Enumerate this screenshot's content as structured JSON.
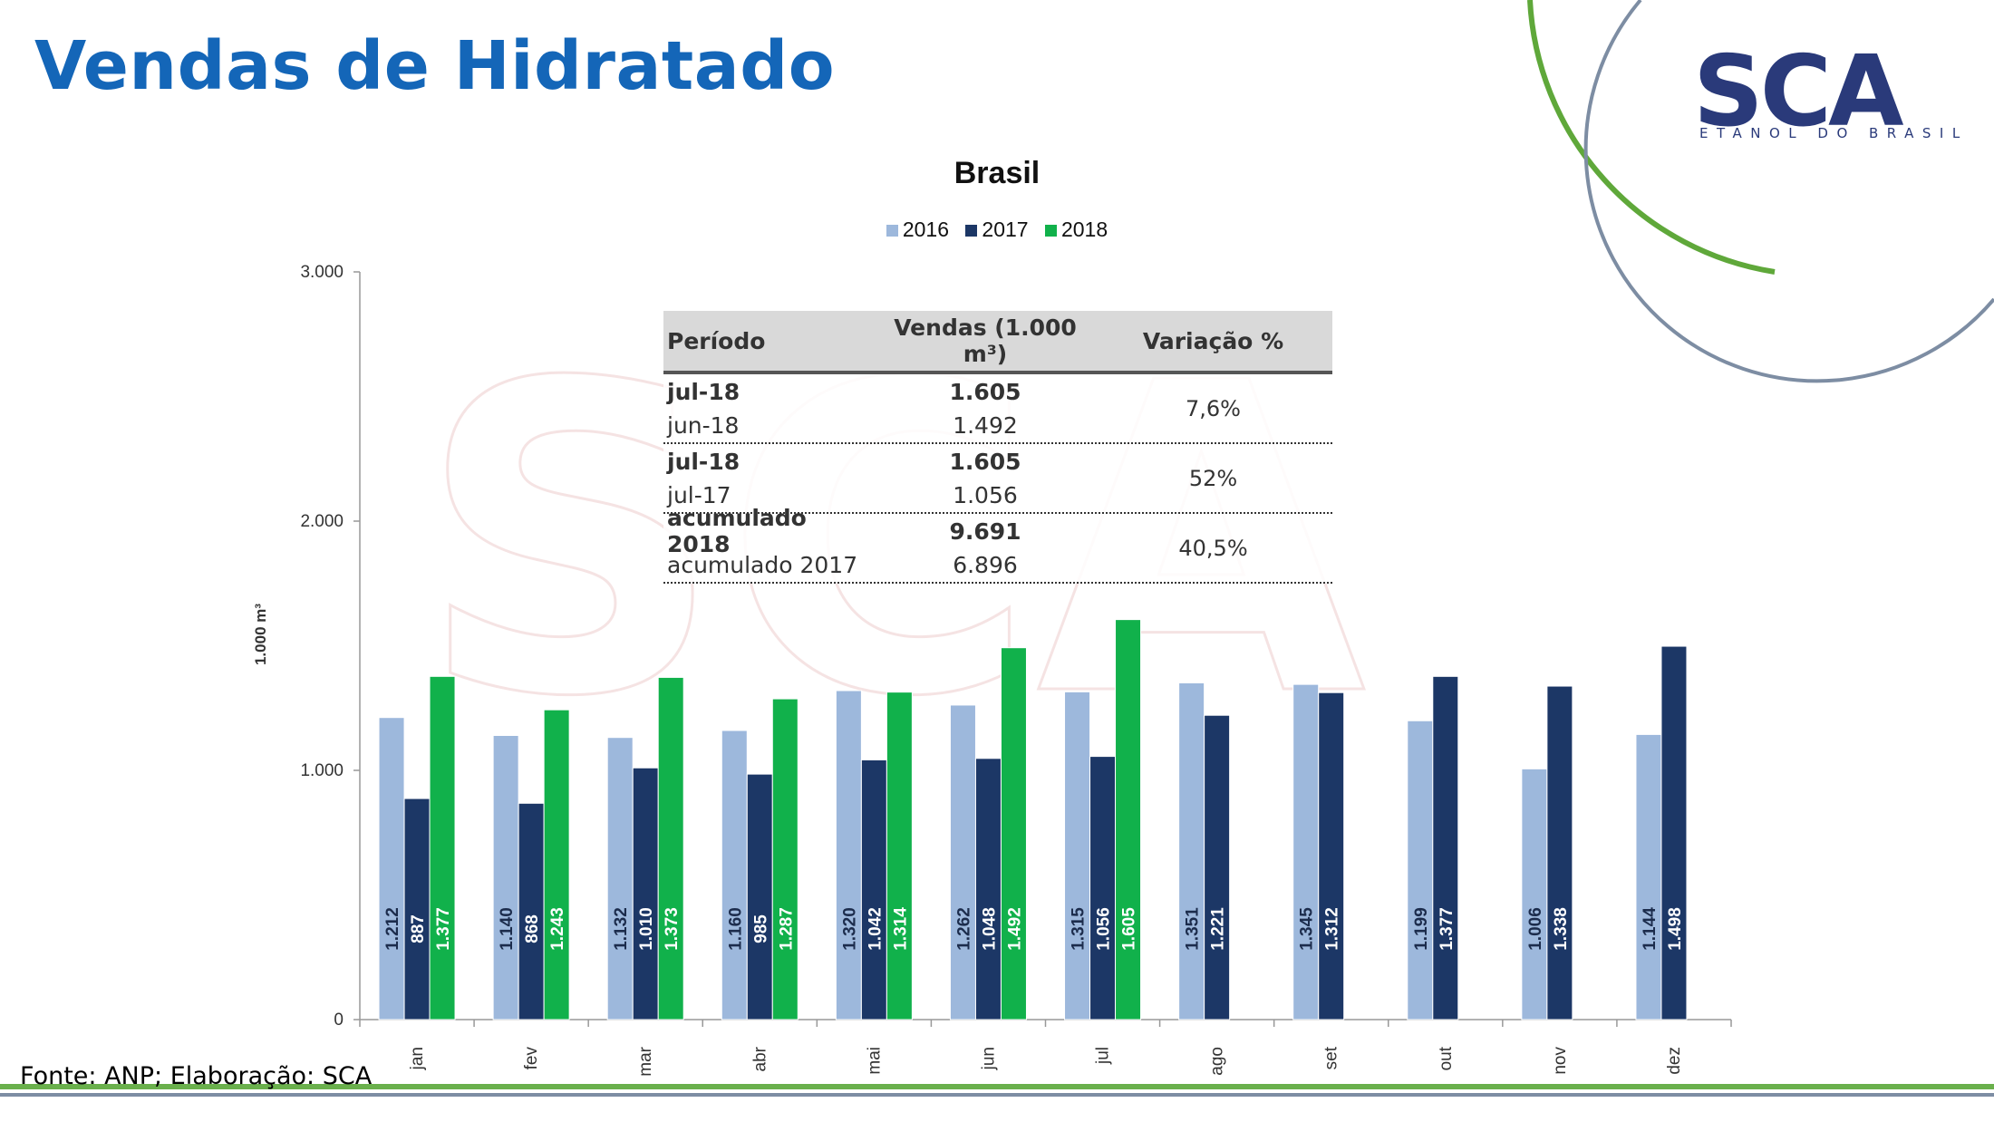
{
  "page": {
    "title": "Vendas de Hidratado",
    "source": "Fonte: ANP; Elaboração: SCA"
  },
  "logo": {
    "name": "SCA",
    "subtitle": "ETANOL DO BRASIL",
    "colors": {
      "navy": "#2a3a7a",
      "green": "#6ab04c"
    }
  },
  "chart_data": {
    "type": "bar",
    "title": "Brasil",
    "ylabel": "1.000 m³",
    "xlabel": "",
    "ylim": [
      0,
      3000
    ],
    "yticks": [
      "0",
      "1.000",
      "2.000",
      "3.000"
    ],
    "ytick_values": [
      0,
      1000,
      2000,
      3000
    ],
    "legend_position": "top-center",
    "grid": false,
    "categories": [
      "jan",
      "fev",
      "mar",
      "abr",
      "mai",
      "jun",
      "jul",
      "ago",
      "set",
      "out",
      "nov",
      "dez"
    ],
    "series": [
      {
        "name": "2016",
        "color": "#9db8dc",
        "values": [
          1212,
          1140,
          1132,
          1160,
          1320,
          1262,
          1315,
          1351,
          1345,
          1199,
          1006,
          1144
        ],
        "labels": [
          "1.212",
          "1.140",
          "1.132",
          "1.160",
          "1.320",
          "1.262",
          "1.315",
          "1.351",
          "1.345",
          "1.199",
          "1.006",
          "1.144"
        ]
      },
      {
        "name": "2017",
        "color": "#1c3766",
        "values": [
          887,
          868,
          1010,
          985,
          1042,
          1048,
          1056,
          1221,
          1312,
          1377,
          1338,
          1498
        ],
        "labels": [
          "887",
          "868",
          "1.010",
          "985",
          "1.042",
          "1.048",
          "1.056",
          "1.221",
          "1.312",
          "1.377",
          "1.338",
          "1.498"
        ]
      },
      {
        "name": "2018",
        "color": "#11b14b",
        "values": [
          1377,
          1243,
          1373,
          1287,
          1314,
          1492,
          1605,
          null,
          null,
          null,
          null,
          null
        ],
        "labels": [
          "1.377",
          "1.243",
          "1.373",
          "1.287",
          "1.314",
          "1.492",
          "1.605",
          null,
          null,
          null,
          null,
          null
        ]
      }
    ]
  },
  "table": {
    "headers": [
      "Período",
      "Vendas (1.000 m³)",
      "Variação %"
    ],
    "groups": [
      {
        "rows": [
          {
            "period": "jul-18",
            "value": "1.605"
          },
          {
            "period": "jun-18",
            "value": "1.492"
          }
        ],
        "variation": "7,6%"
      },
      {
        "rows": [
          {
            "period": "jul-18",
            "value": "1.605"
          },
          {
            "period": "jul-17",
            "value": "1.056"
          }
        ],
        "variation": "52%"
      },
      {
        "rows": [
          {
            "period": "acumulado 2018",
            "value": "9.691"
          },
          {
            "period": "acumulado 2017",
            "value": "6.896"
          }
        ],
        "variation": "40,5%"
      }
    ]
  }
}
